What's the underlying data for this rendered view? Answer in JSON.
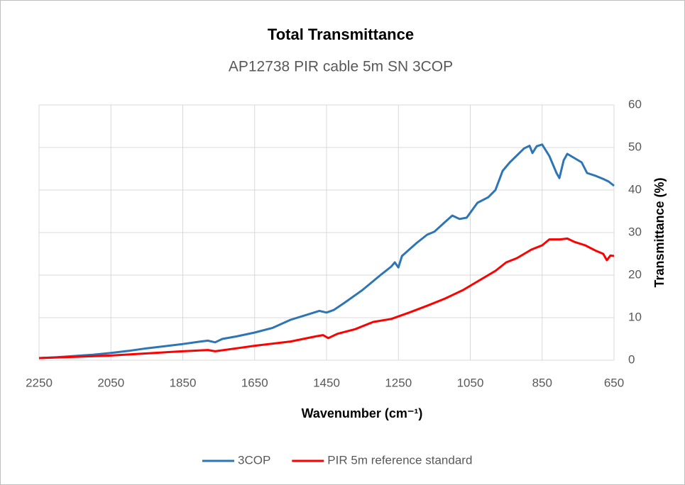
{
  "chart_data": {
    "type": "line",
    "title": "Total Transmittance",
    "subtitle": "AP12738 PIR cable 5m  SN 3COP",
    "x_label": "Wavenumber  (cm⁻¹)",
    "y_label": "Transmittance (%)",
    "xlim": [
      2250,
      650
    ],
    "xticks": [
      2250,
      2050,
      1850,
      1650,
      1450,
      1250,
      1050,
      850,
      650
    ],
    "ylim": [
      0,
      60
    ],
    "yticks": [
      0,
      10,
      20,
      30,
      40,
      50,
      60
    ],
    "y_axis_side": "right",
    "grid": true,
    "legend": "bottom",
    "series": [
      {
        "name": "3COP",
        "color": "#2e75b6",
        "x": [
          2250,
          2200,
          2150,
          2100,
          2050,
          2000,
          1950,
          1900,
          1850,
          1800,
          1780,
          1760,
          1740,
          1700,
          1650,
          1600,
          1550,
          1500,
          1470,
          1450,
          1430,
          1400,
          1350,
          1300,
          1270,
          1260,
          1250,
          1240,
          1200,
          1170,
          1150,
          1120,
          1100,
          1080,
          1060,
          1030,
          1000,
          980,
          960,
          940,
          900,
          885,
          877,
          865,
          850,
          830,
          810,
          802,
          790,
          780,
          760,
          740,
          725,
          700,
          680,
          665,
          650
        ],
        "values": [
          0.5,
          0.7,
          1,
          1.3,
          1.7,
          2.2,
          2.8,
          3.3,
          3.8,
          4.4,
          4.6,
          4.2,
          5,
          5.6,
          6.5,
          7.6,
          9.5,
          10.8,
          11.6,
          11.2,
          11.8,
          13.5,
          16.5,
          20,
          22,
          23,
          21.8,
          24.5,
          27.5,
          29.5,
          30.2,
          32.5,
          34,
          33.2,
          33.5,
          37,
          38.3,
          40,
          44.5,
          46.5,
          49.8,
          50.4,
          48.7,
          50.3,
          50.7,
          48,
          44,
          42.8,
          47,
          48.5,
          47.5,
          46.5,
          44,
          43.3,
          42.6,
          42,
          41
        ]
      },
      {
        "name": "PIR 5m reference standard",
        "color": "#ff0000",
        "x": [
          2250,
          2150,
          2050,
          1950,
          1850,
          1780,
          1760,
          1700,
          1650,
          1550,
          1480,
          1460,
          1445,
          1420,
          1370,
          1320,
          1270,
          1220,
          1170,
          1120,
          1070,
          1020,
          980,
          950,
          920,
          880,
          850,
          830,
          800,
          780,
          760,
          730,
          700,
          680,
          670,
          660,
          650
        ],
        "values": [
          0.5,
          0.8,
          1.1,
          1.6,
          2.1,
          2.4,
          2.1,
          2.8,
          3.4,
          4.4,
          5.6,
          5.9,
          5.2,
          6.2,
          7.3,
          9,
          9.7,
          11.2,
          12.8,
          14.5,
          16.5,
          19,
          21,
          23,
          24,
          26,
          27,
          28.4,
          28.4,
          28.6,
          27.8,
          27,
          25.7,
          25,
          23.5,
          24.6,
          24.5
        ]
      }
    ]
  }
}
